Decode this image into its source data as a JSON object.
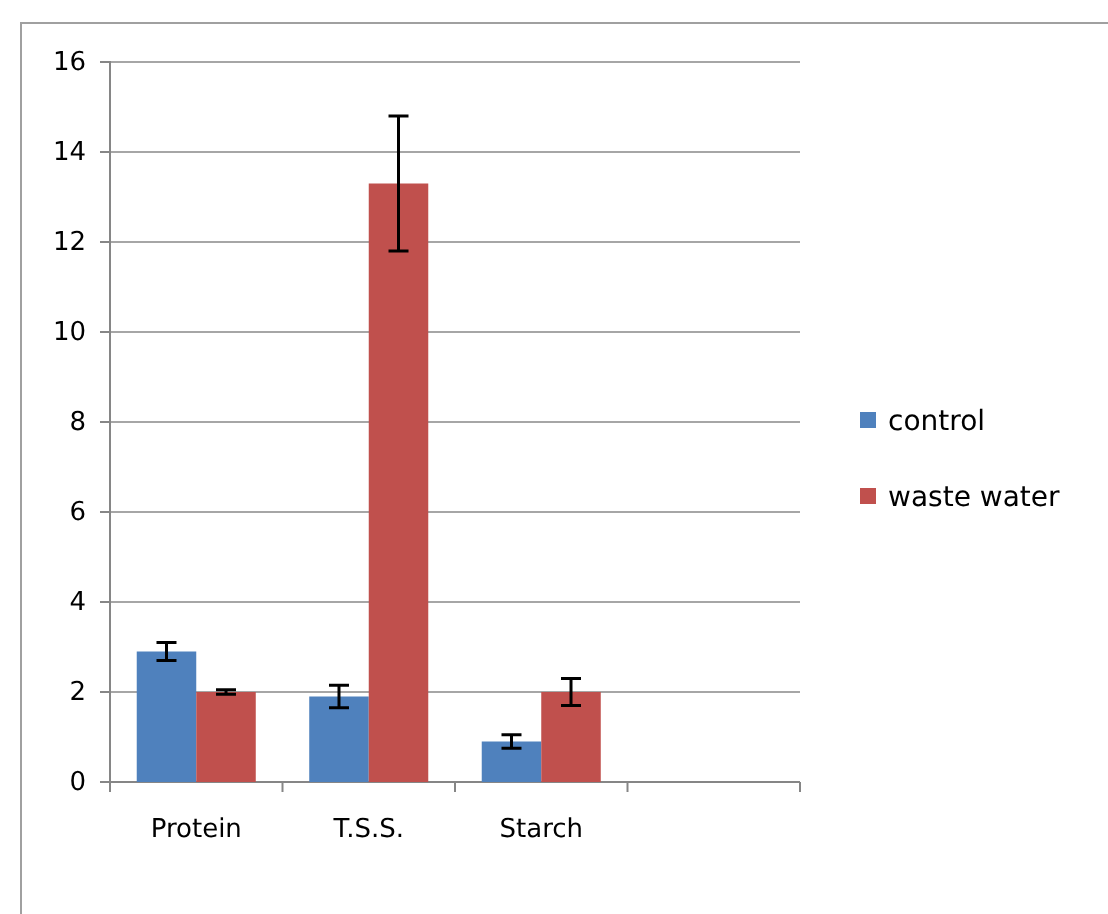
{
  "chart_data": {
    "type": "bar",
    "categories": [
      "Protein",
      "T.S.S.",
      "Starch",
      null
    ],
    "series": [
      {
        "name": "control",
        "color": "#4f81bd",
        "values": [
          2.9,
          1.9,
          0.9,
          null
        ],
        "errors": [
          0.2,
          0.25,
          0.15,
          null
        ]
      },
      {
        "name": "waste water",
        "color": "#c0504d",
        "values": [
          2.0,
          13.3,
          2.0,
          null
        ],
        "errors": [
          0.05,
          1.5,
          0.3,
          null
        ]
      }
    ],
    "ylim": [
      0,
      16
    ],
    "yticks": [
      0,
      2,
      4,
      6,
      8,
      10,
      12,
      14,
      16
    ],
    "grid": "y",
    "legend": "right"
  }
}
